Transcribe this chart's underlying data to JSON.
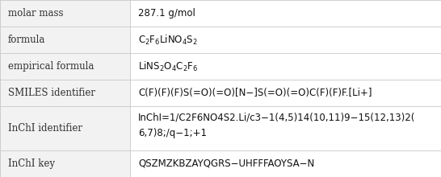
{
  "rows": [
    {
      "label": "molar mass",
      "value": "287.1 g/mol",
      "multiline": false
    },
    {
      "label": "formula",
      "value": "C$_2$F$_6$LiNO$_4$S$_2$",
      "multiline": false
    },
    {
      "label": "empirical formula",
      "value": "LiNS$_2$O$_4$C$_2$F$_6$",
      "multiline": false
    },
    {
      "label": "SMILES identifier",
      "value": "C(F)(F)(F)S(=O)(=O)[N−]S(=O)(=O)C(F)(F)F.[Li+]",
      "multiline": false
    },
    {
      "label": "InChI identifier",
      "value_lines": [
        "InChI=1/C2F6NO4S2.Li/c3−1(4,5)14(10,11)9−15(12,13)2(",
        "6,7)8;/q−1;+1"
      ],
      "multiline": true
    },
    {
      "label": "InChI key",
      "value": "QSZMZKBZAYQGRS−UHFFFAOYSA−N",
      "multiline": false
    }
  ],
  "col_split": 0.295,
  "bg_label": "#f2f2f2",
  "bg_value": "#ffffff",
  "line_color": "#c8c8c8",
  "label_color": "#303030",
  "value_color": "#111111",
  "font_size": 8.5,
  "label_font_size": 8.5,
  "row_heights_rel": [
    1,
    1,
    1,
    1,
    1.65,
    1
  ],
  "lw": 0.6
}
